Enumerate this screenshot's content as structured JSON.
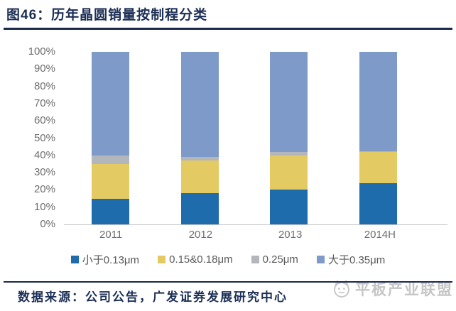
{
  "header": {
    "title": "图46：历年晶圆销量按制程分类"
  },
  "chart_data": {
    "type": "bar",
    "stacked": true,
    "percent": true,
    "title": "历年晶圆销量按制程分类",
    "xlabel": "",
    "ylabel": "",
    "categories": [
      "2011",
      "2012",
      "2013",
      "2014H"
    ],
    "series": [
      {
        "name": "小于0.13μm",
        "color": "#1f6cac",
        "values": [
          15,
          18,
          20,
          24
        ]
      },
      {
        "name": "0.15&0.18μm",
        "color": "#e4ca62",
        "values": [
          20,
          19,
          20,
          18
        ]
      },
      {
        "name": "0.25μm",
        "color": "#b3b6ba",
        "values": [
          5,
          2,
          2,
          0.5
        ]
      },
      {
        "name": "大于0.35μm",
        "color": "#7e9ac8",
        "values": [
          60,
          61,
          58,
          57.5
        ]
      }
    ],
    "ylim": [
      0,
      100
    ],
    "y_ticks": [
      "100%",
      "90%",
      "80%",
      "70%",
      "60%",
      "50%",
      "40%",
      "30%",
      "20%",
      "10%",
      "0%"
    ],
    "grid": false,
    "legend_position": "bottom"
  },
  "footer": {
    "source_text": "数据来源：公司公告，广发证券发展研究中心"
  },
  "watermark": {
    "text": "平板产业联盟",
    "icon": "mascot-face-logo"
  }
}
